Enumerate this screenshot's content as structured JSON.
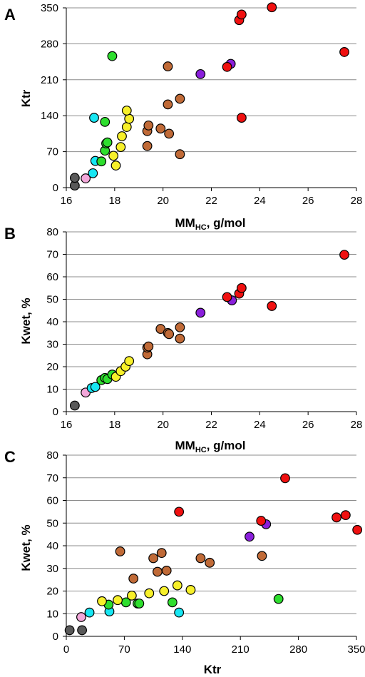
{
  "colors": {
    "gray": "#595959",
    "pink": "#f2a7d9",
    "cyan": "#17e6f2",
    "green": "#2ede2e",
    "yellow": "#f7f02a",
    "brown": "#c06a37",
    "purple": "#8a1fdb",
    "red": "#f01010"
  },
  "chart_data": [
    {
      "type": "scatter",
      "panel": "A",
      "xlabel": "MM",
      "xlabel_sub": "HC",
      "xlabel_suffix": ", g/mol",
      "ylabel": "Ktr",
      "xlim": [
        16,
        28
      ],
      "ylim": [
        0,
        350
      ],
      "xticks": [
        16,
        18,
        20,
        22,
        24,
        26,
        28
      ],
      "yticks": [
        0,
        70,
        140,
        210,
        280,
        350
      ],
      "grid": "horizontal",
      "points": [
        {
          "x": 16.35,
          "y": 4,
          "c": "gray"
        },
        {
          "x": 16.35,
          "y": 19,
          "c": "gray"
        },
        {
          "x": 16.8,
          "y": 18,
          "c": "pink"
        },
        {
          "x": 17.1,
          "y": 28,
          "c": "cyan"
        },
        {
          "x": 17.2,
          "y": 52,
          "c": "cyan"
        },
        {
          "x": 17.15,
          "y": 136,
          "c": "cyan"
        },
        {
          "x": 17.45,
          "y": 51,
          "c": "green"
        },
        {
          "x": 17.6,
          "y": 72,
          "c": "green"
        },
        {
          "x": 17.65,
          "y": 86,
          "c": "green"
        },
        {
          "x": 17.7,
          "y": 88,
          "c": "green"
        },
        {
          "x": 17.6,
          "y": 128,
          "c": "green"
        },
        {
          "x": 17.9,
          "y": 256,
          "c": "green"
        },
        {
          "x": 17.95,
          "y": 62,
          "c": "yellow"
        },
        {
          "x": 18.05,
          "y": 43,
          "c": "yellow"
        },
        {
          "x": 18.25,
          "y": 79,
          "c": "yellow"
        },
        {
          "x": 18.3,
          "y": 100,
          "c": "yellow"
        },
        {
          "x": 18.5,
          "y": 118,
          "c": "yellow"
        },
        {
          "x": 18.6,
          "y": 134,
          "c": "yellow"
        },
        {
          "x": 18.5,
          "y": 150,
          "c": "yellow"
        },
        {
          "x": 19.35,
          "y": 81,
          "c": "brown"
        },
        {
          "x": 19.35,
          "y": 110,
          "c": "brown"
        },
        {
          "x": 19.4,
          "y": 121,
          "c": "brown"
        },
        {
          "x": 19.9,
          "y": 115,
          "c": "brown"
        },
        {
          "x": 20.2,
          "y": 162,
          "c": "brown"
        },
        {
          "x": 20.25,
          "y": 105,
          "c": "brown"
        },
        {
          "x": 20.2,
          "y": 236,
          "c": "brown"
        },
        {
          "x": 20.7,
          "y": 65,
          "c": "brown"
        },
        {
          "x": 20.7,
          "y": 173,
          "c": "brown"
        },
        {
          "x": 21.55,
          "y": 221,
          "c": "purple"
        },
        {
          "x": 22.8,
          "y": 241,
          "c": "purple"
        },
        {
          "x": 22.65,
          "y": 235,
          "c": "red"
        },
        {
          "x": 23.15,
          "y": 326,
          "c": "red"
        },
        {
          "x": 23.25,
          "y": 337,
          "c": "red"
        },
        {
          "x": 23.25,
          "y": 136,
          "c": "red"
        },
        {
          "x": 24.5,
          "y": 351,
          "c": "red"
        },
        {
          "x": 27.5,
          "y": 264,
          "c": "red"
        }
      ]
    },
    {
      "type": "scatter",
      "panel": "B",
      "xlabel": "MM",
      "xlabel_sub": "HC",
      "xlabel_suffix": ", g/mol",
      "ylabel": "Kwet, %",
      "xlim": [
        16,
        28
      ],
      "ylim": [
        0,
        80
      ],
      "xticks": [
        16,
        18,
        20,
        22,
        24,
        26,
        28
      ],
      "yticks": [
        0,
        10,
        20,
        30,
        40,
        50,
        60,
        70,
        80
      ],
      "grid": "horizontal",
      "points": [
        {
          "x": 16.35,
          "y": 2.7,
          "c": "gray"
        },
        {
          "x": 16.8,
          "y": 8.5,
          "c": "pink"
        },
        {
          "x": 17.05,
          "y": 10.5,
          "c": "cyan"
        },
        {
          "x": 17.2,
          "y": 11,
          "c": "cyan"
        },
        {
          "x": 17.45,
          "y": 14,
          "c": "green"
        },
        {
          "x": 17.6,
          "y": 15,
          "c": "green"
        },
        {
          "x": 17.7,
          "y": 14.5,
          "c": "green"
        },
        {
          "x": 17.9,
          "y": 16.5,
          "c": "green"
        },
        {
          "x": 18.05,
          "y": 15.5,
          "c": "yellow"
        },
        {
          "x": 18.25,
          "y": 18,
          "c": "yellow"
        },
        {
          "x": 18.45,
          "y": 20,
          "c": "yellow"
        },
        {
          "x": 18.6,
          "y": 22.5,
          "c": "yellow"
        },
        {
          "x": 19.35,
          "y": 25.5,
          "c": "brown"
        },
        {
          "x": 19.35,
          "y": 28.5,
          "c": "brown"
        },
        {
          "x": 19.4,
          "y": 29,
          "c": "brown"
        },
        {
          "x": 19.9,
          "y": 36.8,
          "c": "brown"
        },
        {
          "x": 20.2,
          "y": 35,
          "c": "brown"
        },
        {
          "x": 20.25,
          "y": 34.5,
          "c": "brown"
        },
        {
          "x": 20.7,
          "y": 37.5,
          "c": "brown"
        },
        {
          "x": 20.7,
          "y": 32.5,
          "c": "brown"
        },
        {
          "x": 21.55,
          "y": 44,
          "c": "purple"
        },
        {
          "x": 22.85,
          "y": 49.5,
          "c": "purple"
        },
        {
          "x": 22.65,
          "y": 51,
          "c": "red"
        },
        {
          "x": 23.15,
          "y": 52.5,
          "c": "red"
        },
        {
          "x": 23.25,
          "y": 55,
          "c": "red"
        },
        {
          "x": 24.5,
          "y": 47,
          "c": "red"
        },
        {
          "x": 27.5,
          "y": 69.8,
          "c": "red"
        }
      ]
    },
    {
      "type": "scatter",
      "panel": "C",
      "xlabel": "Ktr",
      "xlabel_sub": "",
      "xlabel_suffix": "",
      "ylabel": "Kwet, %",
      "xlim": [
        0,
        350
      ],
      "ylim": [
        0,
        80
      ],
      "xticks": [
        0,
        70,
        140,
        210,
        280,
        350
      ],
      "yticks": [
        0,
        10,
        20,
        30,
        40,
        50,
        60,
        70,
        80
      ],
      "grid": "horizontal",
      "points": [
        {
          "x": 4,
          "y": 2.7,
          "c": "gray"
        },
        {
          "x": 19,
          "y": 2.7,
          "c": "gray"
        },
        {
          "x": 18,
          "y": 8.5,
          "c": "pink"
        },
        {
          "x": 28,
          "y": 10.5,
          "c": "cyan"
        },
        {
          "x": 52,
          "y": 11,
          "c": "cyan"
        },
        {
          "x": 136,
          "y": 10.5,
          "c": "cyan"
        },
        {
          "x": 51,
          "y": 14,
          "c": "green"
        },
        {
          "x": 72,
          "y": 15,
          "c": "green"
        },
        {
          "x": 86,
          "y": 14.5,
          "c": "green"
        },
        {
          "x": 88,
          "y": 14.5,
          "c": "green"
        },
        {
          "x": 128,
          "y": 15,
          "c": "green"
        },
        {
          "x": 256,
          "y": 16.5,
          "c": "green"
        },
        {
          "x": 43,
          "y": 15.5,
          "c": "yellow"
        },
        {
          "x": 62,
          "y": 16,
          "c": "yellow"
        },
        {
          "x": 79,
          "y": 18,
          "c": "yellow"
        },
        {
          "x": 100,
          "y": 19,
          "c": "yellow"
        },
        {
          "x": 118,
          "y": 20,
          "c": "yellow"
        },
        {
          "x": 134,
          "y": 22.5,
          "c": "yellow"
        },
        {
          "x": 150,
          "y": 20.5,
          "c": "yellow"
        },
        {
          "x": 65,
          "y": 37.5,
          "c": "brown"
        },
        {
          "x": 81,
          "y": 25.5,
          "c": "brown"
        },
        {
          "x": 105,
          "y": 34.5,
          "c": "brown"
        },
        {
          "x": 110,
          "y": 28.5,
          "c": "brown"
        },
        {
          "x": 115,
          "y": 36.8,
          "c": "brown"
        },
        {
          "x": 121,
          "y": 29,
          "c": "brown"
        },
        {
          "x": 162,
          "y": 34.5,
          "c": "brown"
        },
        {
          "x": 173,
          "y": 32.5,
          "c": "brown"
        },
        {
          "x": 236,
          "y": 35.5,
          "c": "brown"
        },
        {
          "x": 221,
          "y": 44,
          "c": "purple"
        },
        {
          "x": 241,
          "y": 49.5,
          "c": "purple"
        },
        {
          "x": 136,
          "y": 55,
          "c": "red"
        },
        {
          "x": 235,
          "y": 51,
          "c": "red"
        },
        {
          "x": 264,
          "y": 69.8,
          "c": "red"
        },
        {
          "x": 326,
          "y": 52.5,
          "c": "red"
        },
        {
          "x": 337,
          "y": 53.5,
          "c": "red"
        },
        {
          "x": 351,
          "y": 47,
          "c": "red"
        }
      ]
    }
  ]
}
